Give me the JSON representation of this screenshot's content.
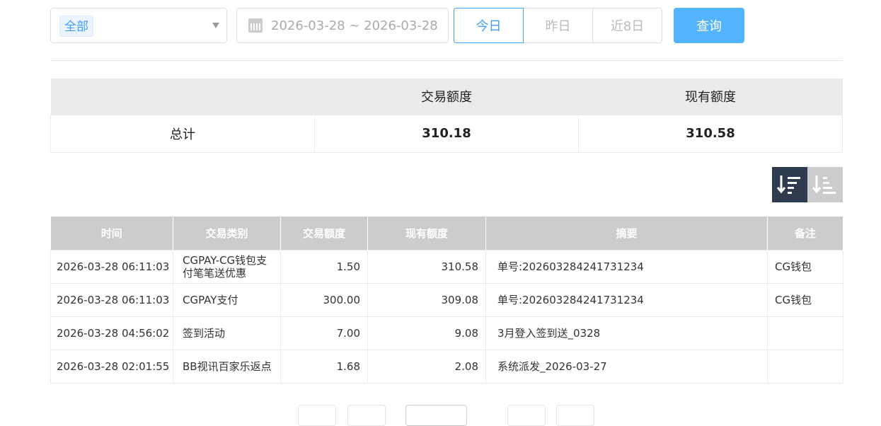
{
  "filters": {
    "type_tag": "全部",
    "date_range": "2026-03-28 ~ 2026-03-28",
    "quick": [
      "今日",
      "昨日",
      "近8日"
    ],
    "active_quick": 0,
    "search_label": "查询"
  },
  "summary": {
    "headers": [
      "",
      "交易额度",
      "现有额度"
    ],
    "row": [
      "总计",
      "310.18",
      "310.58"
    ]
  },
  "sort": {
    "desc_icon": "sort-desc-icon",
    "asc_icon": "sort-asc-icon",
    "active": "desc"
  },
  "table": {
    "headers": [
      "时间",
      "交易类别",
      "交易额度",
      "现有额度",
      "摘要",
      "备注"
    ],
    "rows": [
      [
        "2026-03-28 06:11:03",
        "CGPAY-CG钱包支付笔笔送优惠",
        "1.50",
        "310.58",
        "单号:202603284241731234",
        "CG钱包"
      ],
      [
        "2026-03-28 06:11:03",
        "CGPAY支付",
        "300.00",
        "309.08",
        "单号:202603284241731234",
        "CG钱包"
      ],
      [
        "2026-03-28 04:56:02",
        "签到活动",
        "7.00",
        "9.08",
        "3月登入签到送_0328",
        ""
      ],
      [
        "2026-03-28 02:01:55",
        "BB视讯百家乐返点",
        "1.68",
        "2.08",
        "系统派发_2026-03-27",
        ""
      ]
    ]
  },
  "colors": {
    "accent": "#409eff",
    "search_button": "#53b3ff",
    "sort_active": "#2e3a4e"
  }
}
